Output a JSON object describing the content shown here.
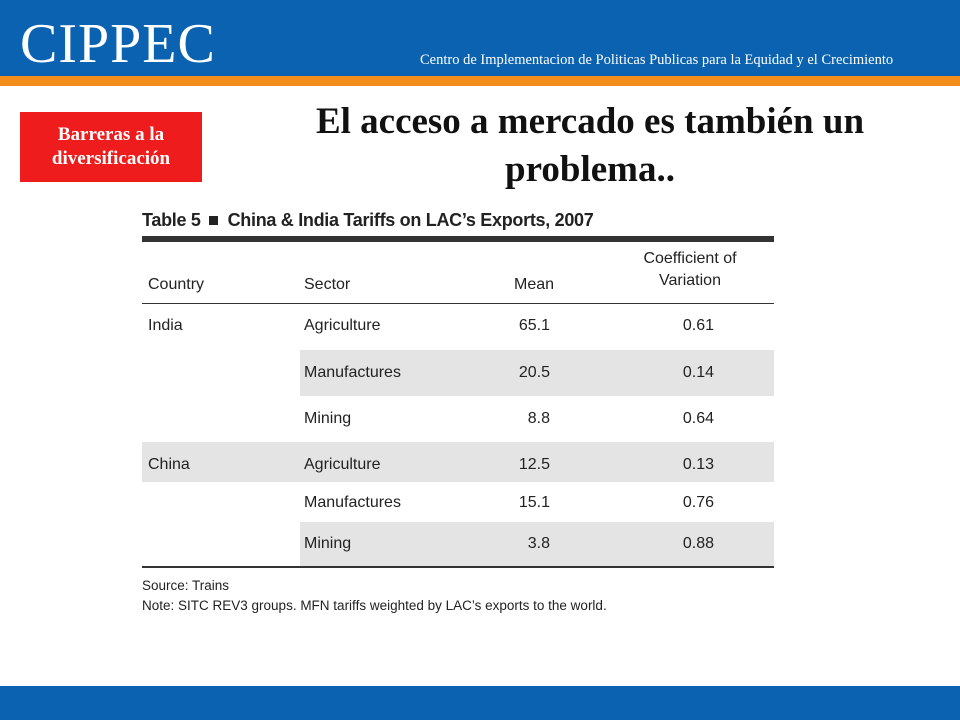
{
  "header": {
    "logo": "CIPPEC",
    "tagline": "Centro de Implementacion de Politicas Publicas para la Equidad y el Crecimiento"
  },
  "badge": {
    "line1": "Barreras a la",
    "line2": "diversificación"
  },
  "slide_title": {
    "line1": "El acceso a mercado es también un",
    "line2": "problema.."
  },
  "table": {
    "label": "Table 5",
    "title": "China & India Tariffs on LAC’s Exports, 2007",
    "headers": {
      "country": "Country",
      "sector": "Sector",
      "mean": "Mean",
      "cov_line1": "Coefficient of",
      "cov_line2": "Variation"
    },
    "rows": [
      {
        "country": "India",
        "sector": "Agriculture",
        "mean": "65.1",
        "cov": "0.61"
      },
      {
        "country": "",
        "sector": "Manufactures",
        "mean": "20.5",
        "cov": "0.14"
      },
      {
        "country": "",
        "sector": "Mining",
        "mean": "8.8",
        "cov": "0.64"
      },
      {
        "country": "China",
        "sector": "Agriculture",
        "mean": "12.5",
        "cov": "0.13"
      },
      {
        "country": "",
        "sector": "Manufactures",
        "mean": "15.1",
        "cov": "0.76"
      },
      {
        "country": "",
        "sector": "Mining",
        "mean": "3.8",
        "cov": "0.88"
      }
    ],
    "source": "Source: Trains",
    "note": "Note: SITC REV3 groups. MFN tariffs weighted by LAC’s exports to the world."
  },
  "colors": {
    "brand_blue": "#0a62b0",
    "brand_orange": "#f28c1b",
    "badge_red": "#ee1c1c",
    "row_shade": "#e4e4e4"
  }
}
